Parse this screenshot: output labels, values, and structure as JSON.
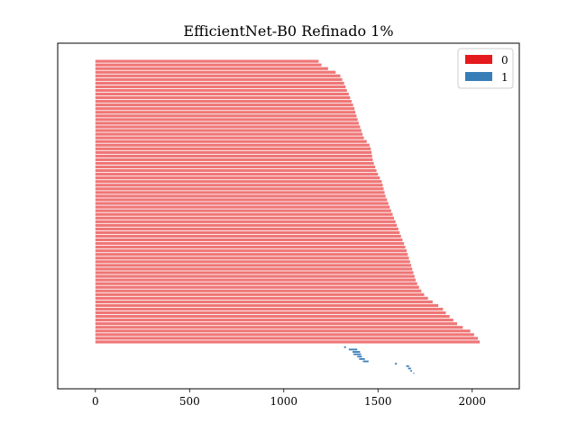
{
  "chart_data": {
    "type": "bar",
    "orientation": "horizontal",
    "title": "EfficientNet-B0 Refinado 1%",
    "xlabel": "",
    "ylabel": "",
    "xlim": [
      -200,
      2250
    ],
    "xticks": [
      0,
      500,
      1000,
      1500,
      2000
    ],
    "y_ticks_visible": false,
    "grid": false,
    "legend_position": "top-right",
    "series": [
      {
        "name": "0",
        "color": "#e41a1c",
        "opacity": 0.6,
        "bars": [
          [
            0,
            1185
          ],
          [
            0,
            1200
          ],
          [
            0,
            1235
          ],
          [
            0,
            1275
          ],
          [
            0,
            1300
          ],
          [
            0,
            1310
          ],
          [
            0,
            1320
          ],
          [
            0,
            1328
          ],
          [
            0,
            1335
          ],
          [
            0,
            1345
          ],
          [
            0,
            1352
          ],
          [
            0,
            1360
          ],
          [
            0,
            1368
          ],
          [
            0,
            1375
          ],
          [
            0,
            1380
          ],
          [
            0,
            1386
          ],
          [
            0,
            1392
          ],
          [
            0,
            1398
          ],
          [
            0,
            1405
          ],
          [
            0,
            1412
          ],
          [
            0,
            1418
          ],
          [
            0,
            1425
          ],
          [
            0,
            1440
          ],
          [
            0,
            1455
          ],
          [
            0,
            1462
          ],
          [
            0,
            1466
          ],
          [
            0,
            1469
          ],
          [
            0,
            1472
          ],
          [
            0,
            1478
          ],
          [
            0,
            1485
          ],
          [
            0,
            1492
          ],
          [
            0,
            1500
          ],
          [
            0,
            1510
          ],
          [
            0,
            1520
          ],
          [
            0,
            1525
          ],
          [
            0,
            1530
          ],
          [
            0,
            1535
          ],
          [
            0,
            1540
          ],
          [
            0,
            1548
          ],
          [
            0,
            1555
          ],
          [
            0,
            1562
          ],
          [
            0,
            1570
          ],
          [
            0,
            1578
          ],
          [
            0,
            1585
          ],
          [
            0,
            1593
          ],
          [
            0,
            1600
          ],
          [
            0,
            1608
          ],
          [
            0,
            1615
          ],
          [
            0,
            1622
          ],
          [
            0,
            1630
          ],
          [
            0,
            1638
          ],
          [
            0,
            1645
          ],
          [
            0,
            1652
          ],
          [
            0,
            1658
          ],
          [
            0,
            1664
          ],
          [
            0,
            1670
          ],
          [
            0,
            1676
          ],
          [
            0,
            1682
          ],
          [
            0,
            1688
          ],
          [
            0,
            1694
          ],
          [
            0,
            1700
          ],
          [
            0,
            1708
          ],
          [
            0,
            1718
          ],
          [
            0,
            1730
          ],
          [
            0,
            1745
          ],
          [
            0,
            1765
          ],
          [
            0,
            1790
          ],
          [
            0,
            1820
          ],
          [
            0,
            1845
          ],
          [
            0,
            1860
          ],
          [
            0,
            1880
          ],
          [
            0,
            1900
          ],
          [
            0,
            1920
          ],
          [
            0,
            1950
          ],
          [
            0,
            1990
          ],
          [
            0,
            2010
          ],
          [
            0,
            2030
          ],
          [
            0,
            2040
          ]
        ]
      },
      {
        "name": "1",
        "color": "#377eb8",
        "opacity": 1,
        "bars": [
          [
            1320,
            1330
          ],
          [
            1345,
            1390
          ],
          [
            1365,
            1405
          ],
          [
            1370,
            1410
          ],
          [
            1390,
            1415
          ],
          [
            1400,
            1430
          ],
          [
            1420,
            1450
          ],
          [
            1590,
            1600
          ],
          [
            1650,
            1665
          ],
          [
            1660,
            1675
          ],
          [
            1672,
            1680
          ],
          [
            1688,
            1692
          ]
        ]
      }
    ]
  }
}
